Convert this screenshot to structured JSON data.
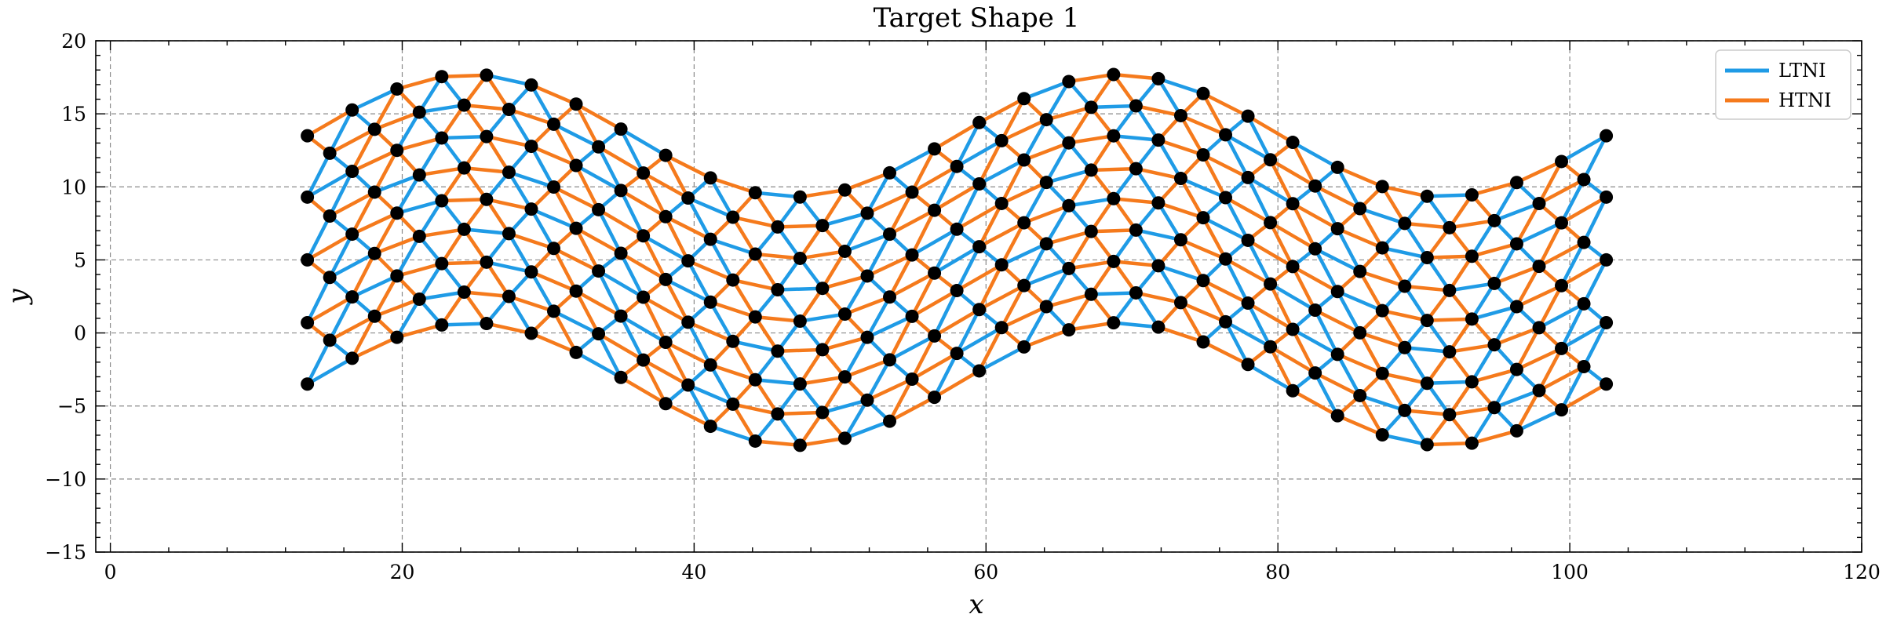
{
  "chart_data": {
    "type": "scatter",
    "title": "Target Shape 1",
    "xlabel": "x",
    "ylabel": "y",
    "xlim": [
      -1,
      120
    ],
    "ylim": [
      -15,
      20
    ],
    "xticks": [
      0,
      20,
      40,
      60,
      80,
      100,
      120
    ],
    "yticks": [
      -15,
      -10,
      -5,
      0,
      5,
      10,
      15,
      20
    ],
    "grid": true,
    "legend_position": "top-right",
    "mesh": {
      "description_of_generation": "",
      "x_start": 13.5,
      "x_end": 102.5,
      "rows": 9,
      "columns": 30,
      "row_offsets": [
        -8.5,
        -6.4,
        -4.3,
        -2.1,
        0,
        2.1,
        4.3,
        6.4,
        8.5
      ],
      "centerline_mean": 5.0,
      "centerline_amplitude": 4.2,
      "centerline_period": 44.5,
      "centerline_phase_x": 13.5
    },
    "series": [
      {
        "name": "LTNI",
        "color": "#1f9be6"
      },
      {
        "name": "HTNI",
        "color": "#f57a1c"
      }
    ],
    "node_color": "#000000"
  }
}
